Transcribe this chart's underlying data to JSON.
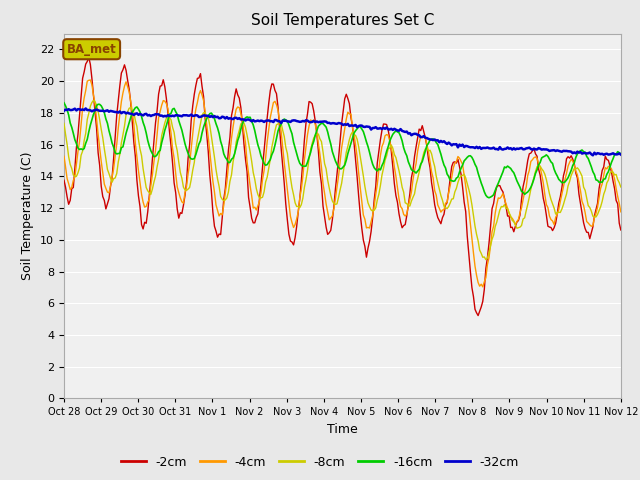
{
  "title": "Soil Temperatures Set C",
  "xlabel": "Time",
  "ylabel": "Soil Temperature (C)",
  "ylim": [
    0,
    23
  ],
  "yticks": [
    0,
    2,
    4,
    6,
    8,
    10,
    12,
    14,
    16,
    18,
    20,
    22
  ],
  "xtick_labels": [
    "Oct 28",
    "Oct 29",
    "Oct 30",
    "Oct 31",
    "Nov 1",
    "Nov 2",
    "Nov 3",
    "Nov 4",
    "Nov 5",
    "Nov 6",
    "Nov 7",
    "Nov 8",
    "Nov 9",
    "Nov 10",
    "Nov 11",
    "Nov 12"
  ],
  "series_colors": [
    "#cc0000",
    "#ff9900",
    "#cccc00",
    "#00cc00",
    "#0000cc"
  ],
  "series_labels": [
    "-2cm",
    "-4cm",
    "-8cm",
    "-16cm",
    "-32cm"
  ],
  "background_color": "#e8e8e8",
  "plot_bg_color": "#f0f0f0",
  "legend_box_facecolor": "#cccc00",
  "legend_box_edgecolor": "#884400",
  "legend_text": "BA_met",
  "days": 15,
  "n_points": 360
}
